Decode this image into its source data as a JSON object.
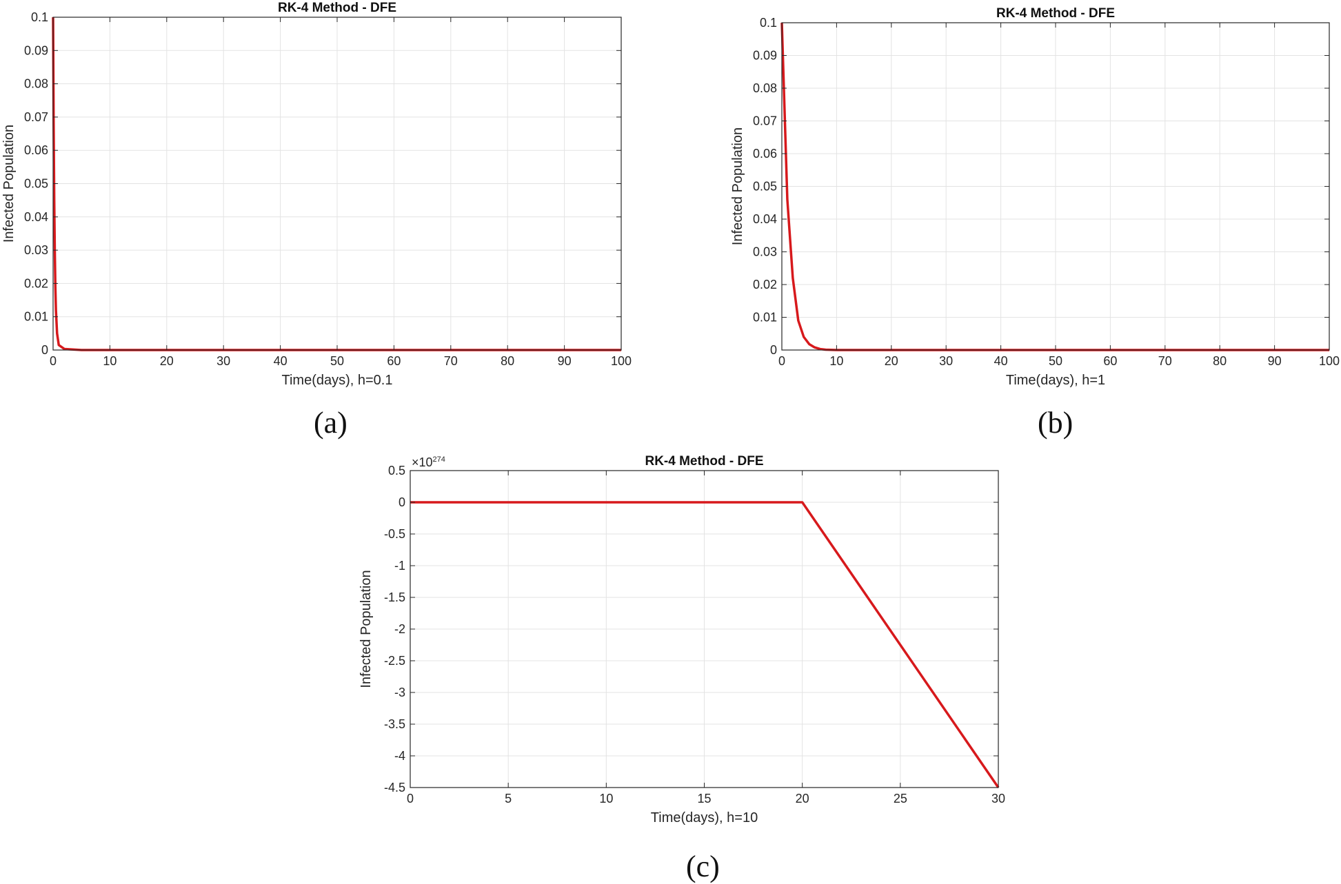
{
  "colors": {
    "series": "#d7191c",
    "grid": "#e3e3e3",
    "axis": "#262626"
  },
  "panel_labels": {
    "a": "(a)",
    "b": "(b)",
    "c": "(c)"
  },
  "chart_data": [
    {
      "type": "line",
      "title": "RK-4 Method - DFE",
      "xlabel": "Time(days), h=0.1",
      "ylabel": "Infected Population",
      "xlim": [
        0,
        100
      ],
      "ylim": [
        0,
        0.1
      ],
      "xticks": [
        0,
        10,
        20,
        30,
        40,
        50,
        60,
        70,
        80,
        90,
        100
      ],
      "yticks": [
        0,
        0.01,
        0.02,
        0.03,
        0.04,
        0.05,
        0.06,
        0.07,
        0.08,
        0.09,
        0.1
      ],
      "ytick_labels": [
        "0",
        "0.01",
        "0.02",
        "0.03",
        "0.04",
        "0.05",
        "0.06",
        "0.07",
        "0.08",
        "0.09",
        "0.1"
      ],
      "exponent_label": "",
      "grid": true,
      "series": [
        {
          "x": [
            0,
            0.1,
            0.2,
            0.3,
            0.4,
            0.5,
            0.7,
            1,
            2,
            5,
            100
          ],
          "y": [
            0.1,
            0.068,
            0.045,
            0.03,
            0.019,
            0.012,
            0.005,
            0.0015,
            0.0003,
            0.0,
            0.0
          ]
        }
      ]
    },
    {
      "type": "line",
      "title": "RK-4 Method - DFE",
      "xlabel": "Time(days), h=1",
      "ylabel": "Infected Population",
      "xlim": [
        0,
        100
      ],
      "ylim": [
        0,
        0.1
      ],
      "xticks": [
        0,
        10,
        20,
        30,
        40,
        50,
        60,
        70,
        80,
        90,
        100
      ],
      "yticks": [
        0,
        0.01,
        0.02,
        0.03,
        0.04,
        0.05,
        0.06,
        0.07,
        0.08,
        0.09,
        0.1
      ],
      "ytick_labels": [
        "0",
        "0.01",
        "0.02",
        "0.03",
        "0.04",
        "0.05",
        "0.06",
        "0.07",
        "0.08",
        "0.09",
        "0.1"
      ],
      "exponent_label": "",
      "grid": true,
      "series": [
        {
          "x": [
            0,
            1,
            2,
            3,
            4,
            5,
            6,
            7,
            8,
            10,
            15,
            100
          ],
          "y": [
            0.1,
            0.046,
            0.022,
            0.009,
            0.004,
            0.0018,
            0.0008,
            0.0003,
            0.0001,
            0.0,
            0.0,
            0.0
          ]
        }
      ]
    },
    {
      "type": "line",
      "title": "RK-4 Method - DFE",
      "xlabel": "Time(days), h=10",
      "ylabel": "Infected Population",
      "xlim": [
        0,
        30
      ],
      "ylim": [
        -4.5,
        0.5
      ],
      "xticks": [
        0,
        5,
        10,
        15,
        20,
        25,
        30
      ],
      "yticks": [
        -4.5,
        -4,
        -3.5,
        -3,
        -2.5,
        -2,
        -1.5,
        -1,
        -0.5,
        0,
        0.5
      ],
      "ytick_labels": [
        "-4.5",
        "-4",
        "-3.5",
        "-3",
        "-2.5",
        "-2",
        "-1.5",
        "-1",
        "-0.5",
        "0",
        "0.5"
      ],
      "exponent_label": "×10",
      "exponent_power": "274",
      "grid": true,
      "series": [
        {
          "x": [
            0,
            10,
            20,
            30
          ],
          "y": [
            0,
            0,
            0,
            -4.5
          ]
        }
      ]
    }
  ]
}
